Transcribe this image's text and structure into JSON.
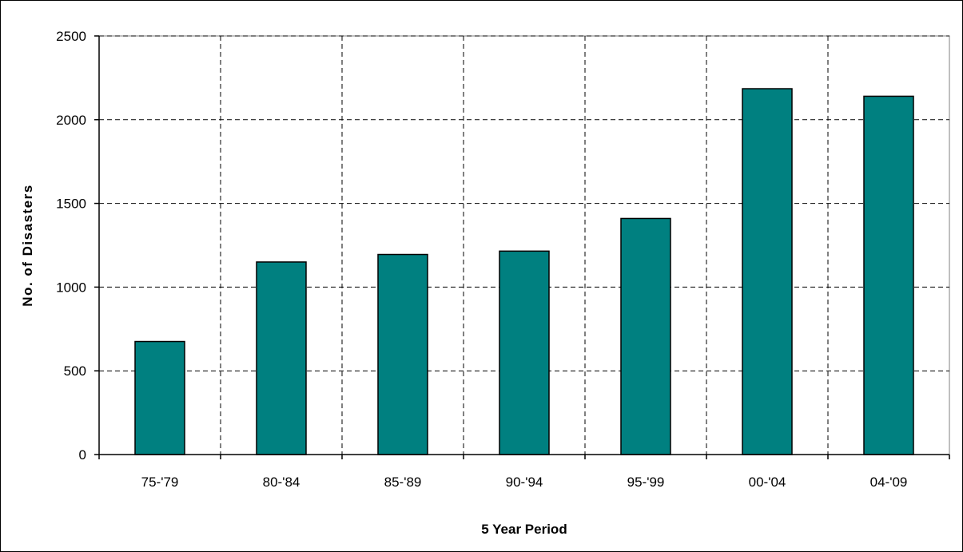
{
  "chart_data": {
    "type": "bar",
    "categories": [
      "75-'79",
      "80-'84",
      "85-'89",
      "90-'94",
      "95-'99",
      "00-'04",
      "04-'09"
    ],
    "values": [
      675,
      1150,
      1195,
      1215,
      1410,
      2185,
      2140
    ],
    "title": "",
    "xlabel": "5 Year Period",
    "ylabel": "No. of Disasters",
    "ylim": [
      0,
      2500
    ],
    "yticks": [
      0,
      500,
      1000,
      1500,
      2000,
      2500
    ],
    "grid": true,
    "legend": "none",
    "colors": {
      "bar_fill": "#008080",
      "bar_stroke": "#000000",
      "grid": "#000000",
      "axis": "#000000"
    }
  }
}
